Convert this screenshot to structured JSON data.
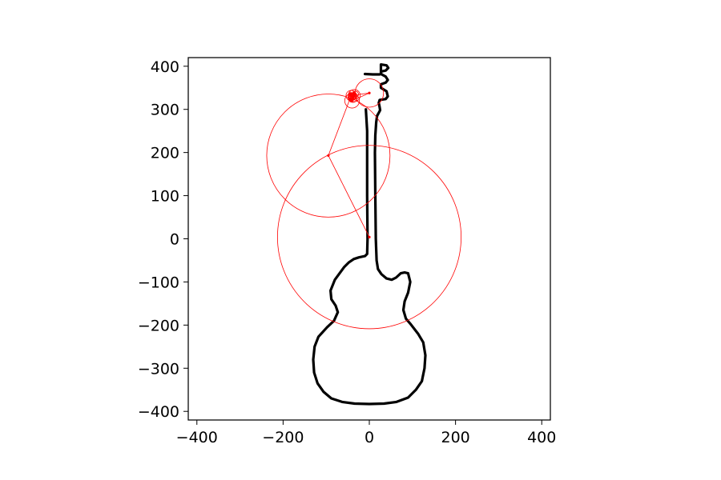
{
  "chart_data": {
    "type": "line",
    "title": "",
    "xlabel": "",
    "ylabel": "",
    "xlim": [
      -420,
      420
    ],
    "ylim": [
      -420,
      420
    ],
    "grid": false,
    "x_ticks": [
      -400,
      -200,
      0,
      200,
      400
    ],
    "y_ticks": [
      -400,
      -300,
      -200,
      -100,
      0,
      100,
      200,
      300,
      400
    ],
    "x_tick_labels": [
      "−400",
      "−200",
      "0",
      "200",
      "400"
    ],
    "y_tick_labels": [
      "−400",
      "−300",
      "−200",
      "−100",
      "0",
      "100",
      "200",
      "300",
      "400"
    ],
    "series": [
      {
        "color": "#000000",
        "style": "outline",
        "x": [
          -8,
          -5,
          -5,
          -4,
          -5,
          -10,
          -24,
          -36,
          -48,
          -58,
          -80,
          -90,
          -88,
          -78,
          -73,
          -82,
          -98,
          -118,
          -127,
          -130,
          -128,
          -120,
          -106,
          -88,
          -63,
          -34,
          0,
          34,
          63,
          90,
          108,
          122,
          128,
          130,
          125,
          113,
          96,
          85,
          79,
          82,
          90,
          95,
          90,
          82,
          73,
          62,
          52,
          40,
          28,
          20,
          17,
          15,
          14,
          13,
          14,
          16,
          18,
          22,
          25,
          24,
          22,
          24,
          38,
          43,
          40,
          27,
          27,
          38,
          43,
          38,
          27,
          28,
          38,
          44,
          40,
          27,
          27,
          24,
          17,
          8,
          -10
        ],
        "y": [
          300,
          250,
          100,
          0,
          -35,
          -40,
          -43,
          -47,
          -55,
          -65,
          -95,
          -120,
          -140,
          -155,
          -170,
          -190,
          -205,
          -227,
          -250,
          -280,
          -310,
          -335,
          -355,
          -370,
          -378,
          -382,
          -383,
          -382,
          -378,
          -368,
          -350,
          -330,
          -300,
          -270,
          -240,
          -220,
          -198,
          -185,
          -165,
          -145,
          -125,
          -100,
          -80,
          -78,
          -80,
          -90,
          -95,
          -92,
          -82,
          -70,
          -50,
          0,
          100,
          200,
          240,
          270,
          285,
          292,
          298,
          305,
          315,
          322,
          324,
          330,
          342,
          350,
          358,
          362,
          368,
          376,
          382,
          388,
          390,
          396,
          402,
          404,
          382,
          381,
          381,
          381,
          382
        ]
      },
      {
        "color": "#ff0000",
        "style": "epicycles",
        "centers": [
          [
            0,
            4
          ],
          [
            -95,
            193
          ],
          [
            -42,
            332
          ],
          [
            0,
            338
          ],
          [
            -40,
            320
          ],
          [
            -35,
            332
          ],
          [
            -38,
            326
          ],
          [
            -40,
            330
          ],
          [
            -32,
            335
          ],
          [
            -37,
            328
          ],
          [
            -45,
            325
          ],
          [
            -44,
            336
          ],
          [
            -42,
            320
          ],
          [
            -36,
            338
          ]
        ],
        "radii": [
          213,
          143,
          12,
          33,
          17,
          14,
          10,
          8,
          7,
          6,
          5,
          4,
          3,
          3
        ]
      }
    ]
  }
}
